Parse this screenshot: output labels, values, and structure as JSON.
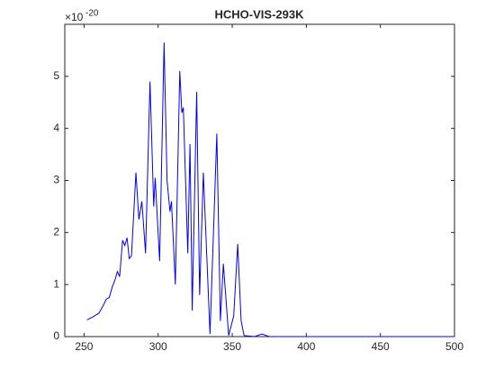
{
  "chart_data": {
    "type": "line",
    "title": "HCHO-VIS-293K",
    "axis_multiplier": {
      "base": "×10",
      "exponent": "-20"
    },
    "x": [
      252,
      256,
      260,
      263,
      265,
      267,
      269,
      271,
      272.5,
      274,
      276,
      277.5,
      279,
      280.5,
      282,
      285,
      287,
      289,
      291.5,
      294.5,
      297,
      298,
      301,
      304,
      306,
      308,
      309,
      311.6,
      314.6,
      316,
      317,
      320,
      321.5,
      323,
      326,
      328,
      330.5,
      335,
      339.6,
      342,
      344,
      347.6,
      351,
      353.7,
      356,
      358,
      365,
      370,
      375,
      400,
      450,
      500
    ],
    "series": [
      {
        "name": "HCHO",
        "color": "#0000ff",
        "values": [
          0.32,
          0.38,
          0.45,
          0.6,
          0.72,
          0.75,
          0.95,
          1.1,
          1.25,
          1.15,
          1.85,
          1.75,
          1.9,
          1.5,
          1.55,
          3.15,
          2.25,
          2.6,
          1.6,
          4.9,
          2.5,
          3.05,
          1.45,
          5.65,
          3.0,
          2.4,
          2.6,
          1.0,
          5.1,
          4.3,
          4.4,
          1.6,
          3.7,
          0.5,
          4.7,
          0.8,
          3.15,
          0.05,
          3.9,
          0.3,
          1.4,
          0.02,
          0.4,
          1.78,
          0.3,
          0.02,
          0.0,
          0.05,
          0.0,
          0.0,
          0.0,
          0.0
        ]
      }
    ],
    "xlim": [
      237,
      500
    ],
    "xticks": [
      250,
      300,
      350,
      400,
      450,
      500
    ],
    "ylim": [
      0,
      6
    ],
    "yticks": [
      0,
      1,
      2,
      3,
      4,
      5
    ]
  }
}
